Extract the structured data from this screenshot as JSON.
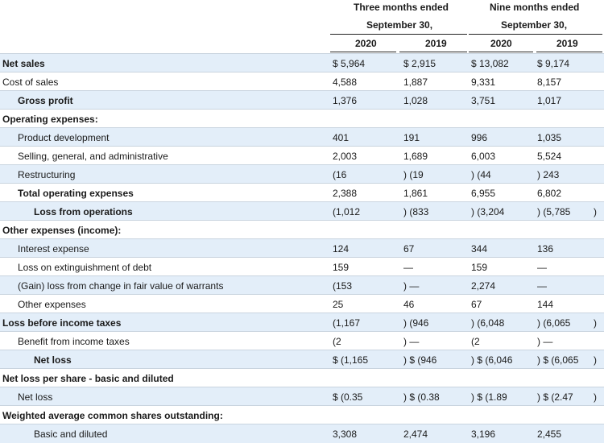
{
  "header": {
    "group1": [
      "Three months ended",
      "September 30,"
    ],
    "group2": [
      "Nine months ended",
      "September 30,"
    ],
    "years": [
      "2020",
      "2019",
      "2020",
      "2019"
    ]
  },
  "rows": [
    {
      "label": "Net sales",
      "bold": true,
      "indent": 0,
      "shade": true,
      "v": [
        "$ 5,964",
        "$ 2,915",
        "$ 13,082",
        "$ 9,174"
      ]
    },
    {
      "label": "Cost of sales",
      "bold": false,
      "indent": 0,
      "shade": false,
      "v": [
        "4,588",
        "1,887",
        "9,331",
        "8,157"
      ]
    },
    {
      "label": "Gross profit",
      "bold": true,
      "indent": 1,
      "shade": true,
      "v": [
        "1,376",
        "1,028",
        "3,751",
        "1,017"
      ]
    },
    {
      "label": "Operating expenses:",
      "bold": true,
      "indent": 0,
      "shade": false,
      "v": [
        "",
        "",
        "",
        ""
      ]
    },
    {
      "label": "Product development",
      "bold": false,
      "indent": 1,
      "shade": true,
      "v": [
        "401",
        "191",
        "996",
        "1,035"
      ]
    },
    {
      "label": "Selling, general, and administrative",
      "bold": false,
      "indent": 1,
      "shade": false,
      "v": [
        "2,003",
        "1,689",
        "6,003",
        "5,524"
      ]
    },
    {
      "label": "Restructuring",
      "bold": false,
      "indent": 1,
      "shade": true,
      "v": [
        "(16",
        ") (19",
        ") (44",
        ") 243"
      ]
    },
    {
      "label": "Total operating expenses",
      "bold": true,
      "indent": 1,
      "shade": false,
      "v": [
        "2,388",
        "1,861",
        "6,955",
        "6,802"
      ]
    },
    {
      "label": "Loss from operations",
      "bold": true,
      "indent": 2,
      "shade": true,
      "v": [
        "(1,012",
        ") (833",
        ") (3,204",
        ") (5,785",
        ")"
      ]
    },
    {
      "label": "Other expenses (income):",
      "bold": true,
      "indent": 0,
      "shade": false,
      "v": [
        "",
        "",
        "",
        ""
      ]
    },
    {
      "label": "Interest expense",
      "bold": false,
      "indent": 1,
      "shade": true,
      "v": [
        "124",
        "67",
        "344",
        "136"
      ]
    },
    {
      "label": "Loss on extinguishment of debt",
      "bold": false,
      "indent": 1,
      "shade": false,
      "v": [
        "159",
        "—",
        "159",
        "—"
      ]
    },
    {
      "label": "(Gain) loss from change in fair value of warrants",
      "bold": false,
      "indent": 1,
      "shade": true,
      "v": [
        "(153",
        ") —",
        "2,274",
        "—"
      ]
    },
    {
      "label": "Other expenses",
      "bold": false,
      "indent": 1,
      "shade": false,
      "v": [
        "25",
        "46",
        "67",
        "144"
      ]
    },
    {
      "label": "Loss before income taxes",
      "bold": true,
      "indent": 0,
      "shade": true,
      "v": [
        "(1,167",
        ") (946",
        ") (6,048",
        ") (6,065",
        ")"
      ]
    },
    {
      "label": "Benefit from income taxes",
      "bold": false,
      "indent": 1,
      "shade": false,
      "v": [
        "(2",
        ") —",
        "(2",
        ") —"
      ]
    },
    {
      "label": "Net loss",
      "bold": true,
      "indent": 2,
      "shade": true,
      "v": [
        "$ (1,165",
        ") $ (946",
        ") $ (6,046",
        ") $ (6,065",
        ")"
      ]
    },
    {
      "label": "Net loss per share - basic and diluted",
      "bold": true,
      "indent": 0,
      "shade": false,
      "v": [
        "",
        "",
        "",
        ""
      ]
    },
    {
      "label": "Net loss",
      "bold": false,
      "indent": 1,
      "shade": true,
      "v": [
        "$ (0.35",
        ") $ (0.38",
        ") $ (1.89",
        ") $ (2.47",
        ")"
      ]
    },
    {
      "label": "Weighted average common shares outstanding:",
      "bold": true,
      "indent": 0,
      "shade": false,
      "v": [
        "",
        "",
        "",
        ""
      ]
    },
    {
      "label": "Basic and diluted",
      "bold": false,
      "indent": 2,
      "shade": true,
      "v": [
        "3,308",
        "2,474",
        "3,196",
        "2,455"
      ]
    }
  ]
}
